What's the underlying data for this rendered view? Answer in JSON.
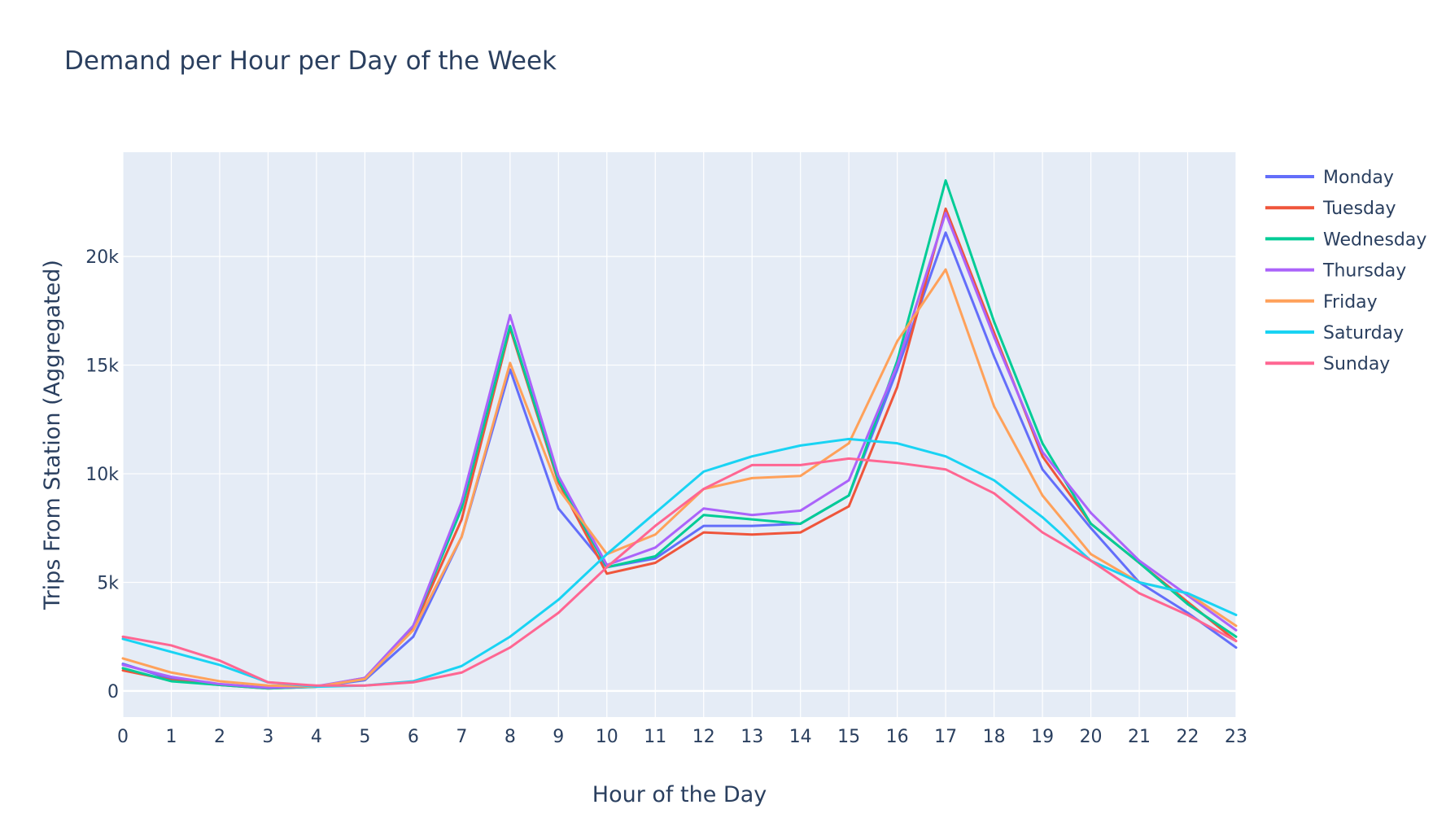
{
  "chart_data": {
    "type": "line",
    "title": "Demand per Hour per Day of the Week",
    "xlabel": "Hour of the Day",
    "ylabel": "Trips From Station (Aggregated)",
    "x": [
      0,
      1,
      2,
      3,
      4,
      5,
      6,
      7,
      8,
      9,
      10,
      11,
      12,
      13,
      14,
      15,
      16,
      17,
      18,
      19,
      20,
      21,
      22,
      23
    ],
    "x_tick_labels": [
      "0",
      "1",
      "2",
      "3",
      "4",
      "5",
      "6",
      "7",
      "8",
      "9",
      "10",
      "11",
      "12",
      "13",
      "14",
      "15",
      "16",
      "17",
      "18",
      "19",
      "20",
      "21",
      "22",
      "23"
    ],
    "xlim": [
      0,
      23
    ],
    "ylim": [
      -1200,
      24800
    ],
    "y_ticks": [
      0,
      5000,
      10000,
      15000,
      20000
    ],
    "y_tick_labels": [
      "0",
      "5k",
      "10k",
      "15k",
      "20k"
    ],
    "grid": true,
    "plot_background": "#e5ecf6",
    "grid_color": "#ffffff",
    "legend_position": "right",
    "series": [
      {
        "name": "Monday",
        "color": "#636efa",
        "values": [
          1250,
          550,
          300,
          150,
          200,
          500,
          2500,
          7100,
          14800,
          8400,
          5700,
          6100,
          7600,
          7600,
          7700,
          9000,
          14800,
          21100,
          15400,
          10200,
          7500,
          5000,
          3600,
          2000
        ]
      },
      {
        "name": "Tuesday",
        "color": "#ef553b",
        "values": [
          950,
          500,
          280,
          120,
          200,
          600,
          2900,
          7900,
          16700,
          9600,
          5400,
          5900,
          7300,
          7200,
          7300,
          8500,
          14000,
          22200,
          16500,
          10800,
          7700,
          5900,
          4100,
          2300
        ]
      },
      {
        "name": "Wednesday",
        "color": "#00cc96",
        "values": [
          1050,
          450,
          280,
          120,
          200,
          550,
          3000,
          8400,
          16800,
          9700,
          5700,
          6200,
          8100,
          7900,
          7700,
          9000,
          15200,
          23500,
          17000,
          11400,
          7700,
          5900,
          4000,
          2500
        ]
      },
      {
        "name": "Thursday",
        "color": "#ab63fa",
        "values": [
          1200,
          650,
          320,
          150,
          220,
          600,
          3000,
          8700,
          17300,
          9900,
          5800,
          6600,
          8400,
          8100,
          8300,
          9700,
          15000,
          22000,
          16300,
          11000,
          8200,
          6000,
          4400,
          2800
        ]
      },
      {
        "name": "Friday",
        "color": "#ffa15a",
        "values": [
          1500,
          850,
          450,
          250,
          200,
          550,
          2800,
          7100,
          15100,
          9300,
          6300,
          7200,
          9300,
          9800,
          9900,
          11400,
          16100,
          19400,
          13100,
          9000,
          6300,
          5000,
          4500,
          3000
        ]
      },
      {
        "name": "Saturday",
        "color": "#19d3f3",
        "values": [
          2400,
          1800,
          1200,
          400,
          200,
          250,
          450,
          1150,
          2500,
          4200,
          6300,
          8200,
          10100,
          10800,
          11300,
          11600,
          11400,
          10800,
          9700,
          8000,
          6000,
          5000,
          4500,
          3500
        ]
      },
      {
        "name": "Sunday",
        "color": "#ff6692",
        "values": [
          2500,
          2100,
          1400,
          400,
          250,
          250,
          400,
          850,
          2000,
          3600,
          5700,
          7600,
          9300,
          10400,
          10400,
          10700,
          10500,
          10200,
          9100,
          7300,
          6000,
          4500,
          3500,
          2300
        ]
      }
    ]
  }
}
